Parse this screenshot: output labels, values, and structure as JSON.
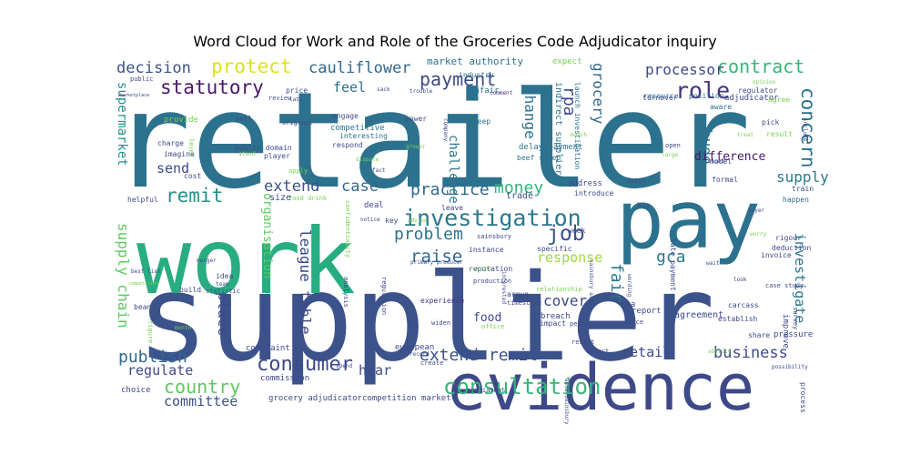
{
  "chart_data": {
    "type": "wordcloud",
    "title": "Word Cloud for Work and Role of the Groceries Code Adjudicator inquiry",
    "background": "#ffffff",
    "palette": "viridis",
    "words": [
      {
        "text": "retailer",
        "color": "#2c728e"
      },
      {
        "text": "supplier",
        "color": "#3b528b"
      },
      {
        "text": "work",
        "color": "#27ad81"
      },
      {
        "text": "pay",
        "color": "#2c728e"
      },
      {
        "text": "evidence",
        "color": "#3e4989"
      },
      {
        "text": "investigation",
        "color": "#2a788e"
      },
      {
        "text": "consultation",
        "color": "#35b779"
      },
      {
        "text": "consumer",
        "color": "#3e4989"
      },
      {
        "text": "money",
        "color": "#2fb47c"
      },
      {
        "text": "job",
        "color": "#3b528b"
      },
      {
        "text": "problem",
        "color": "#2c728e"
      },
      {
        "text": "role",
        "color": "#46327e"
      },
      {
        "text": "contract",
        "color": "#35b779"
      },
      {
        "text": "protect",
        "color": "#dde318"
      },
      {
        "text": "cauliflower",
        "color": "#31688e"
      },
      {
        "text": "payment",
        "color": "#3e4989"
      },
      {
        "text": "statutory",
        "color": "#48186a"
      },
      {
        "text": "decision",
        "color": "#3b528b"
      },
      {
        "text": "concern",
        "color": "#2c728e"
      },
      {
        "text": "country",
        "color": "#5ec962"
      },
      {
        "text": "publish",
        "color": "#31688e"
      },
      {
        "text": "business",
        "color": "#3e4989"
      },
      {
        "text": "extend remit",
        "color": "#3b528b"
      },
      {
        "text": "remit",
        "color": "#21918c"
      },
      {
        "text": "extend",
        "color": "#3b528b"
      },
      {
        "text": "case",
        "color": "#31688e"
      },
      {
        "text": "practice",
        "color": "#31688e"
      },
      {
        "text": "raise",
        "color": "#31688e"
      },
      {
        "text": "send",
        "color": "#3e4989"
      },
      {
        "text": "supply",
        "color": "#2a788e"
      },
      {
        "text": "hear",
        "color": "#3e4989"
      },
      {
        "text": "regulate",
        "color": "#3e4989"
      },
      {
        "text": "committee",
        "color": "#3b528b"
      },
      {
        "text": "supermarket",
        "color": "#21918c"
      },
      {
        "text": "supply chain",
        "color": "#5ec962"
      },
      {
        "text": "league table",
        "color": "#3e4989"
      },
      {
        "text": "place",
        "color": "#3e4989"
      },
      {
        "text": "organisation",
        "color": "#5ec962"
      },
      {
        "text": "change",
        "color": "#2c728e"
      },
      {
        "text": "challenge",
        "color": "#2a788e"
      },
      {
        "text": "grocery",
        "color": "#31688e"
      },
      {
        "text": "rpa",
        "color": "#3e4989"
      },
      {
        "text": "processor",
        "color": "#3e4989"
      },
      {
        "text": "huge",
        "color": "#2c728e"
      },
      {
        "text": "difference",
        "color": "#48186a"
      },
      {
        "text": "investigate",
        "color": "#2a788e"
      },
      {
        "text": "fair",
        "color": "#2a788e"
      },
      {
        "text": "gca",
        "color": "#2a788e"
      },
      {
        "text": "response",
        "color": "#a0da39"
      },
      {
        "text": "cover",
        "color": "#3e4989"
      },
      {
        "text": "food",
        "color": "#3e4989"
      },
      {
        "text": "retail",
        "color": "#3e4989"
      },
      {
        "text": "feel",
        "color": "#2c728e"
      },
      {
        "text": "market authority",
        "color": "#2c728e"
      },
      {
        "text": "industry",
        "color": "#2c728e"
      },
      {
        "text": "unfair",
        "color": "#2c728e"
      },
      {
        "text": "comment",
        "color": "#46327e"
      },
      {
        "text": "sheep",
        "color": "#2c728e"
      },
      {
        "text": "competitive",
        "color": "#2c728e"
      },
      {
        "text": "interesting",
        "color": "#2c728e"
      },
      {
        "text": "respond",
        "color": "#3e4989"
      },
      {
        "text": "engage",
        "color": "#3e4989"
      },
      {
        "text": "delay payment",
        "color": "#2c728e"
      },
      {
        "text": "beef sheep",
        "color": "#2c728e"
      },
      {
        "text": "indirect supplier",
        "color": "#2c728e"
      },
      {
        "text": "launch investigation",
        "color": "#2c728e"
      },
      {
        "text": "extension",
        "color": "#2c728e"
      },
      {
        "text": "march",
        "color": "#7ad151"
      },
      {
        "text": "expect",
        "color": "#7ad151"
      },
      {
        "text": "turnover",
        "color": "#3e4989"
      },
      {
        "text": "adjudicator",
        "color": "#3e4989"
      },
      {
        "text": "opinion",
        "color": "#7ad151"
      },
      {
        "text": "agree",
        "color": "#7ad151"
      },
      {
        "text": "regulator",
        "color": "#3e4989"
      },
      {
        "text": "resource",
        "color": "#31688e"
      },
      {
        "text": "position",
        "color": "#31688e"
      },
      {
        "text": "aware",
        "color": "#2c728e"
      },
      {
        "text": "pick",
        "color": "#3e4989"
      },
      {
        "text": "treat",
        "color": "#7ad151"
      },
      {
        "text": "result",
        "color": "#7ad151"
      },
      {
        "text": "open",
        "color": "#3e4989"
      },
      {
        "text": "large",
        "color": "#7ad151"
      },
      {
        "text": "formal",
        "color": "#3e4989"
      },
      {
        "text": "model",
        "color": "#3e4989"
      },
      {
        "text": "train",
        "color": "#3e4989"
      },
      {
        "text": "happen",
        "color": "#31688e"
      },
      {
        "text": "rigour",
        "color": "#3e4989"
      },
      {
        "text": "deduction",
        "color": "#3e4989"
      },
      {
        "text": "invoice",
        "color": "#3e4989"
      },
      {
        "text": "case study",
        "color": "#3e4989"
      },
      {
        "text": "improve",
        "color": "#3e4989"
      },
      {
        "text": "pressure",
        "color": "#3e4989"
      },
      {
        "text": "process",
        "color": "#3e4989"
      },
      {
        "text": "possibility",
        "color": "#3e4989"
      },
      {
        "text": "survey",
        "color": "#3e4989"
      },
      {
        "text": "share",
        "color": "#3e4989"
      },
      {
        "text": "establish",
        "color": "#3e4989"
      },
      {
        "text": "agreement",
        "color": "#3e4989"
      },
      {
        "text": "carcass",
        "color": "#3e4989"
      },
      {
        "text": "worry",
        "color": "#7ad151"
      },
      {
        "text": "buyer",
        "color": "#3e4989"
      },
      {
        "text": "late payment",
        "color": "#3e4989"
      },
      {
        "text": "buy",
        "color": "#3e4989"
      },
      {
        "text": "week",
        "color": "#3e4989"
      },
      {
        "text": "specific",
        "color": "#3e4989"
      },
      {
        "text": "instance",
        "color": "#3e4989"
      },
      {
        "text": "sainsbury",
        "color": "#3e4989"
      },
      {
        "text": "sainsbury asda",
        "color": "#3e4989"
      },
      {
        "text": "reputation",
        "color": "#3e4989"
      },
      {
        "text": "production",
        "color": "#3e4989"
      },
      {
        "text": "argue",
        "color": "#3e4989"
      },
      {
        "text": "timescale",
        "color": "#3e4989"
      },
      {
        "text": "breach",
        "color": "#3e4989"
      },
      {
        "text": "impact",
        "color": "#3e4989"
      },
      {
        "text": "perform",
        "color": "#3e4989"
      },
      {
        "text": "report",
        "color": "#3e4989"
      },
      {
        "text": "cma",
        "color": "#3e4989"
      },
      {
        "text": "force",
        "color": "#3e4989"
      },
      {
        "text": "resist",
        "color": "#3e4989"
      },
      {
        "text": "affect",
        "color": "#3e4989"
      },
      {
        "text": "european",
        "color": "#3e4989"
      },
      {
        "text": "complaint",
        "color": "#3e4989"
      },
      {
        "text": "commission",
        "color": "#3e4989"
      },
      {
        "text": "choice",
        "color": "#3e4989"
      },
      {
        "text": "grocery adjudicator",
        "color": "#3e4989"
      },
      {
        "text": "competition market",
        "color": "#3e4989"
      },
      {
        "text": "parliament",
        "color": "#3e4989"
      },
      {
        "text": "create",
        "color": "#3e4989"
      },
      {
        "text": "spend",
        "color": "#3e4989"
      },
      {
        "text": "widen",
        "color": "#3e4989"
      },
      {
        "text": "office",
        "color": "#7ad151"
      },
      {
        "text": "experience",
        "color": "#46327e"
      },
      {
        "text": "analysis",
        "color": "#3e4989"
      },
      {
        "text": "regulation",
        "color": "#3e4989"
      },
      {
        "text": "primary producer",
        "color": "#3e4989"
      },
      {
        "text": "confidentiality",
        "color": "#7ad151"
      },
      {
        "text": "advise",
        "color": "#7ad151"
      },
      {
        "text": "key",
        "color": "#3e4989"
      },
      {
        "text": "notice",
        "color": "#3e4989"
      },
      {
        "text": "deal",
        "color": "#3e4989"
      },
      {
        "text": "leave",
        "color": "#3e4989"
      },
      {
        "text": "trade",
        "color": "#3e4989"
      },
      {
        "text": "introduce",
        "color": "#3e4989"
      },
      {
        "text": "address",
        "color": "#3e4989"
      },
      {
        "text": "focus",
        "color": "#3e4989"
      },
      {
        "text": "food drink",
        "color": "#7ad151"
      },
      {
        "text": "size",
        "color": "#3e4989"
      },
      {
        "text": "helpful",
        "color": "#3e4989"
      },
      {
        "text": "apply",
        "color": "#7ad151"
      },
      {
        "text": "cost",
        "color": "#3e4989"
      },
      {
        "text": "imagine",
        "color": "#3e4989"
      },
      {
        "text": "charge",
        "color": "#3e4989"
      },
      {
        "text": "provide",
        "color": "#7ad151"
      },
      {
        "text": "public domain",
        "color": "#3e4989"
      },
      {
        "text": "player",
        "color": "#3e4989"
      },
      {
        "text": "stand",
        "color": "#7ad151"
      },
      {
        "text": "original",
        "color": "#3e4989"
      },
      {
        "text": "sell",
        "color": "#3e4989"
      },
      {
        "text": "review",
        "color": "#3e4989"
      },
      {
        "text": "price",
        "color": "#3e4989"
      },
      {
        "text": "late",
        "color": "#3e4989"
      },
      {
        "text": "public",
        "color": "#3e4989"
      },
      {
        "text": "marketplace",
        "color": "#3e4989"
      },
      {
        "text": "power",
        "color": "#3e4989"
      },
      {
        "text": "grower",
        "color": "#7ad151"
      },
      {
        "text": "dispute",
        "color": "#7ad151"
      },
      {
        "text": "fact",
        "color": "#3e4989"
      },
      {
        "text": "trouble",
        "color": "#3e4989"
      },
      {
        "text": "sack",
        "color": "#3e4989"
      },
      {
        "text": "company",
        "color": "#3e4989"
      },
      {
        "text": "idea",
        "color": "#3e4989"
      },
      {
        "text": "team",
        "color": "#3e4989"
      },
      {
        "text": "build",
        "color": "#3e4989"
      },
      {
        "text": "statistic",
        "color": "#3e4989"
      },
      {
        "text": "independent",
        "color": "#3e4989"
      },
      {
        "text": "bean",
        "color": "#3e4989"
      },
      {
        "text": "figure",
        "color": "#7ad151"
      },
      {
        "text": "month",
        "color": "#7ad151"
      },
      {
        "text": "best",
        "color": "#3e4989"
      },
      {
        "text": "list",
        "color": "#3e4989"
      },
      {
        "text": "merger",
        "color": "#3e4989"
      },
      {
        "text": "competition",
        "color": "#7ad151"
      },
      {
        "text": "sector",
        "color": "#7ad151"
      },
      {
        "text": "interested",
        "color": "#3e4989"
      },
      {
        "text": "record",
        "color": "#3e4989"
      },
      {
        "text": "relationship",
        "color": "#7ad151"
      },
      {
        "text": "level",
        "color": "#7ad151"
      },
      {
        "text": "blunt",
        "color": "#3e4989"
      },
      {
        "text": "ability",
        "color": "#7ad151"
      },
      {
        "text": "include",
        "color": "#3e4989"
      },
      {
        "text": "wait",
        "color": "#3e4989"
      },
      {
        "text": "look",
        "color": "#3e4989"
      },
      {
        "text": "wording",
        "color": "#3e4989"
      },
      {
        "text": "asda sainsbury",
        "color": "#3e4989"
      }
    ]
  }
}
